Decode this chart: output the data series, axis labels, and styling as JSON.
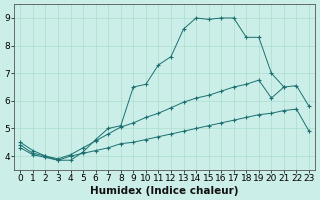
{
  "xlabel": "Humidex (Indice chaleur)",
  "background_color": "#cceee8",
  "line_color": "#1a7070",
  "xlim": [
    -0.5,
    23.5
  ],
  "ylim": [
    3.5,
    9.5
  ],
  "xticks": [
    0,
    1,
    2,
    3,
    4,
    5,
    6,
    7,
    8,
    9,
    10,
    11,
    12,
    13,
    14,
    15,
    16,
    17,
    18,
    19,
    20,
    21,
    22,
    23
  ],
  "yticks": [
    4,
    5,
    6,
    7,
    8,
    9
  ],
  "series": [
    {
      "x": [
        0,
        1,
        2,
        3,
        4,
        5,
        6,
        7,
        8,
        9,
        10,
        11,
        12,
        13,
        14,
        15,
        16,
        17,
        18,
        19,
        20,
        21,
        22,
        23
      ],
      "y": [
        4.5,
        4.2,
        4.0,
        3.85,
        3.85,
        4.15,
        4.6,
        5.0,
        5.1,
        6.5,
        6.6,
        7.3,
        7.6,
        8.6,
        9.0,
        8.95,
        9.0,
        9.0,
        8.3,
        8.3,
        7.0,
        6.5,
        null,
        null
      ]
    },
    {
      "x": [
        0,
        1,
        2,
        3,
        4,
        5,
        6,
        7,
        8,
        9,
        10,
        11,
        12,
        13,
        14,
        15,
        16,
        17,
        18,
        19,
        20,
        21,
        22,
        23
      ],
      "y": [
        4.4,
        4.1,
        4.0,
        3.9,
        4.05,
        4.3,
        4.55,
        4.8,
        5.05,
        5.2,
        5.4,
        5.55,
        5.75,
        5.95,
        6.1,
        6.2,
        6.35,
        6.5,
        6.6,
        6.75,
        6.1,
        6.5,
        6.55,
        5.8
      ]
    },
    {
      "x": [
        0,
        1,
        2,
        3,
        4,
        5,
        6,
        7,
        8,
        9,
        10,
        11,
        12,
        13,
        14,
        15,
        16,
        17,
        18,
        19,
        20,
        21,
        22,
        23
      ],
      "y": [
        4.3,
        4.05,
        3.95,
        3.85,
        4.0,
        4.1,
        4.2,
        4.3,
        4.45,
        4.5,
        4.6,
        4.7,
        4.8,
        4.9,
        5.0,
        5.1,
        5.2,
        5.3,
        5.4,
        5.5,
        5.55,
        5.65,
        5.7,
        4.9
      ]
    }
  ],
  "grid_color": "#aaddcc",
  "tick_fontsize": 6.5,
  "xlabel_fontsize": 7.5,
  "spine_color": "#555555"
}
